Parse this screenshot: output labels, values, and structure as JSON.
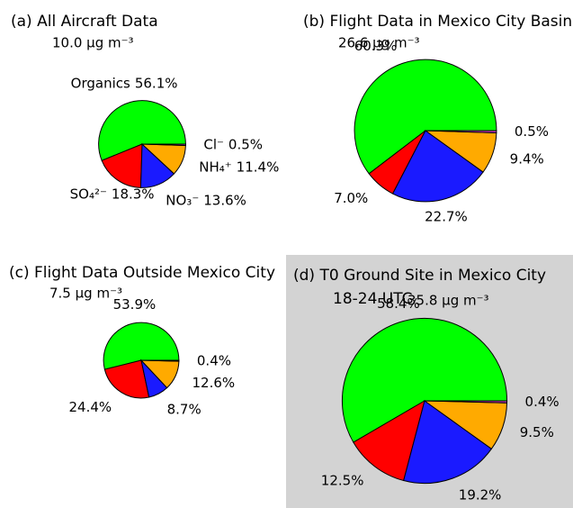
{
  "chart_data": [
    {
      "type": "pie",
      "title": "(a) All Aircraft Data",
      "total": 10.0,
      "total_label": "10.0 μg m⁻³",
      "categories": [
        "Organics",
        "SO₄²⁻",
        "NO₃⁻",
        "NH₄⁺",
        "Cl⁻"
      ],
      "values": [
        56.1,
        18.3,
        13.6,
        11.4,
        0.5
      ],
      "value_labels": [
        "56.1%",
        "18.3%",
        "13.6%",
        "11.4%",
        "0.5%"
      ],
      "colors": [
        "#00ff00",
        "#ff0000",
        "#1a1aff",
        "#ffaa00",
        "#cc33cc"
      ]
    },
    {
      "type": "pie",
      "title": "(b) Flight Data in Mexico City Basin",
      "total": 26.6,
      "total_label": "26.6 μg m⁻³",
      "values": [
        60.3,
        7.0,
        22.7,
        9.4,
        0.5
      ],
      "value_labels": [
        "60.3%",
        "7.0%",
        "22.7%",
        "9.4%",
        "0.5%"
      ],
      "colors": [
        "#00ff00",
        "#ff0000",
        "#1a1aff",
        "#ffaa00",
        "#cc33cc"
      ]
    },
    {
      "type": "pie",
      "title": "(c) Flight Data Outside Mexico City",
      "total": 7.5,
      "total_label": "7.5 μg m⁻³",
      "values": [
        53.9,
        24.4,
        8.7,
        12.6,
        0.4
      ],
      "value_labels": [
        "53.9%",
        "24.4%",
        "8.7%",
        "12.6%",
        "0.4%"
      ],
      "colors": [
        "#00ff00",
        "#ff0000",
        "#1a1aff",
        "#ffaa00",
        "#cc33cc"
      ]
    },
    {
      "type": "pie",
      "title": "(d) T0 Ground Site in Mexico City",
      "subtitle": "18-24 UTC",
      "total": 35.8,
      "total_label": "35.8 μg m⁻³",
      "values": [
        58.4,
        12.5,
        19.2,
        9.5,
        0.4
      ],
      "value_labels": [
        "58.4%",
        "12.5%",
        "19.2%",
        "9.5%",
        "0.4%"
      ],
      "colors": [
        "#00ff00",
        "#ff0000",
        "#1a1aff",
        "#ffaa00",
        "#cc33cc"
      ],
      "background": "#d3d3d3"
    }
  ]
}
